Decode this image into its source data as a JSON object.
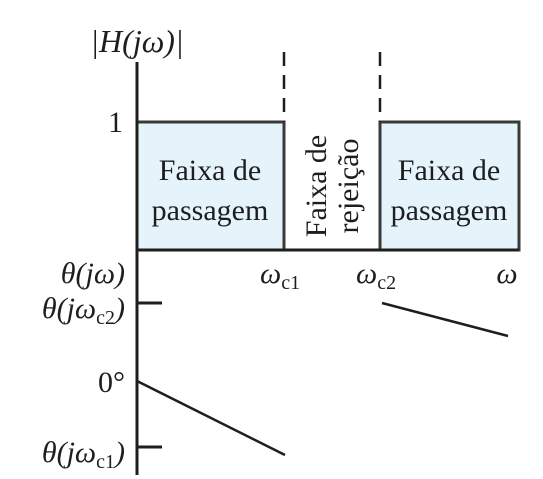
{
  "magnitude_label": "|H(jω)|",
  "magnitude_tick": "1",
  "band_left": {
    "line1": "Faixa de",
    "line2": "passagem"
  },
  "band_right": {
    "line1": "Faixa de",
    "line2": "passagem"
  },
  "stop_band": {
    "line1": "Faixa de",
    "line2": "rejeição"
  },
  "freq_axis": {
    "theta_label": "θ(jω)",
    "wc1": {
      "symbol": "ω",
      "subscript": "c1"
    },
    "wc2": {
      "symbol": "ω",
      "subscript": "c2"
    },
    "omega": "ω"
  },
  "phase_ticks": {
    "theta_wc2": {
      "prefix": "θ(jω",
      "subscript": "c2",
      "suffix": ")"
    },
    "zero": "0°",
    "theta_wc1": {
      "prefix": "θ(jω",
      "subscript": "c1",
      "suffix": ")"
    }
  }
}
